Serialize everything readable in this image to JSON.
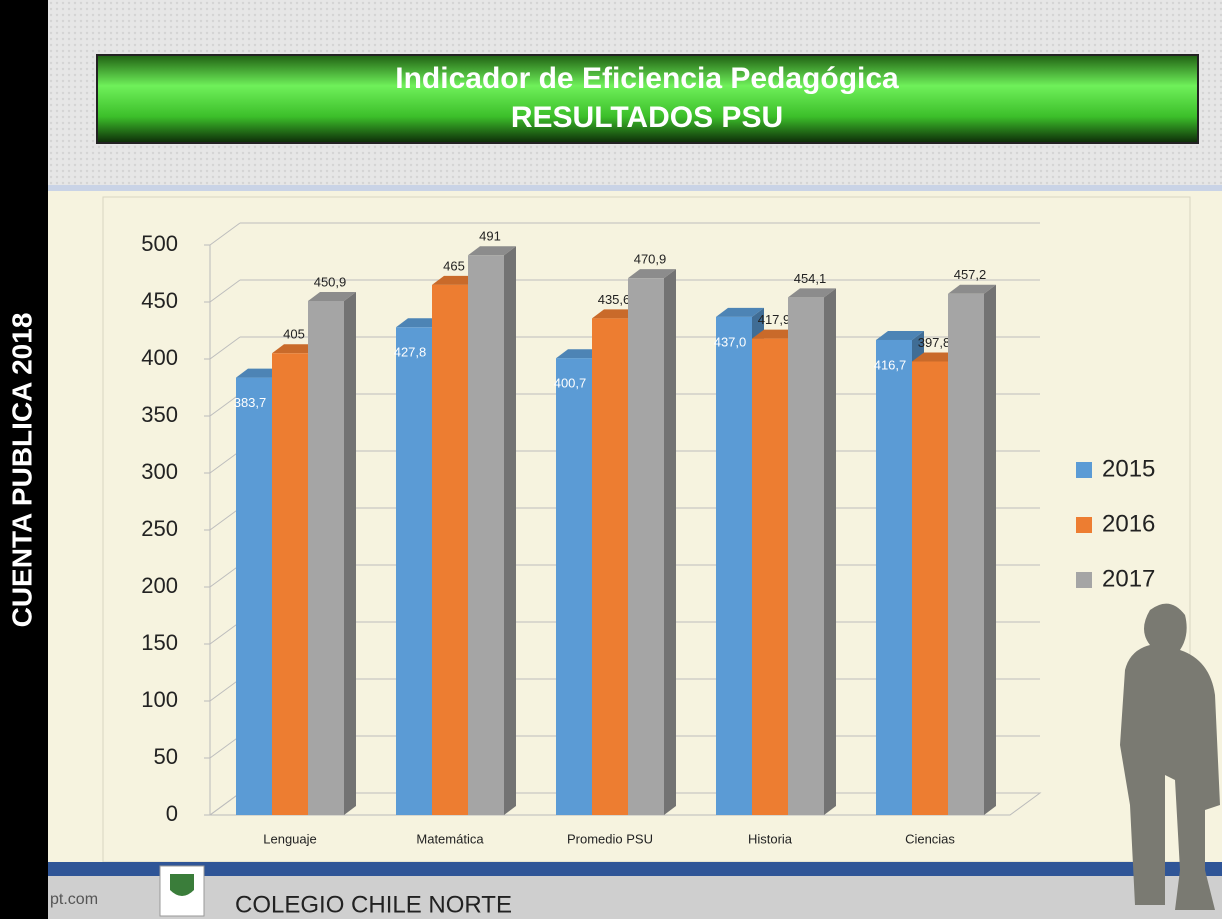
{
  "side_text": "CUENTA PUBLICA 2018",
  "footer": {
    "site_fragment": "pt.com",
    "school": "COLEGIO CHILE NORTE"
  },
  "chart_data": {
    "type": "bar3d",
    "title": "Indicador de Eficiencia Pedagógica",
    "subtitle": "RESULTADOS PSU",
    "categories": [
      "Lenguaje",
      "Matemática",
      "Promedio PSU",
      "Historia",
      "Ciencias"
    ],
    "series": [
      {
        "name": "2015",
        "color": "#5b9bd5",
        "values": [
          383.7,
          427.8,
          400.7,
          437.0,
          416.7
        ],
        "value_labels": [
          "383,7",
          "427,8",
          "400,7",
          "437,0",
          "416,7"
        ]
      },
      {
        "name": "2016",
        "color": "#ed7d31",
        "values": [
          405,
          465,
          435.6,
          417.9,
          397.8
        ],
        "value_labels": [
          "405",
          "465",
          "435,6",
          "417,9",
          "397,8"
        ]
      },
      {
        "name": "2017",
        "color": "#a5a5a5",
        "values": [
          450.9,
          491,
          470.9,
          454.1,
          457.2
        ],
        "value_labels": [
          "450,9",
          "491",
          "470,9",
          "454,1",
          "457,2"
        ]
      }
    ],
    "ylim": [
      0,
      500
    ],
    "yticks": [
      0,
      50,
      100,
      150,
      200,
      250,
      300,
      350,
      400,
      450,
      500
    ],
    "grid": true,
    "legend": "right"
  }
}
